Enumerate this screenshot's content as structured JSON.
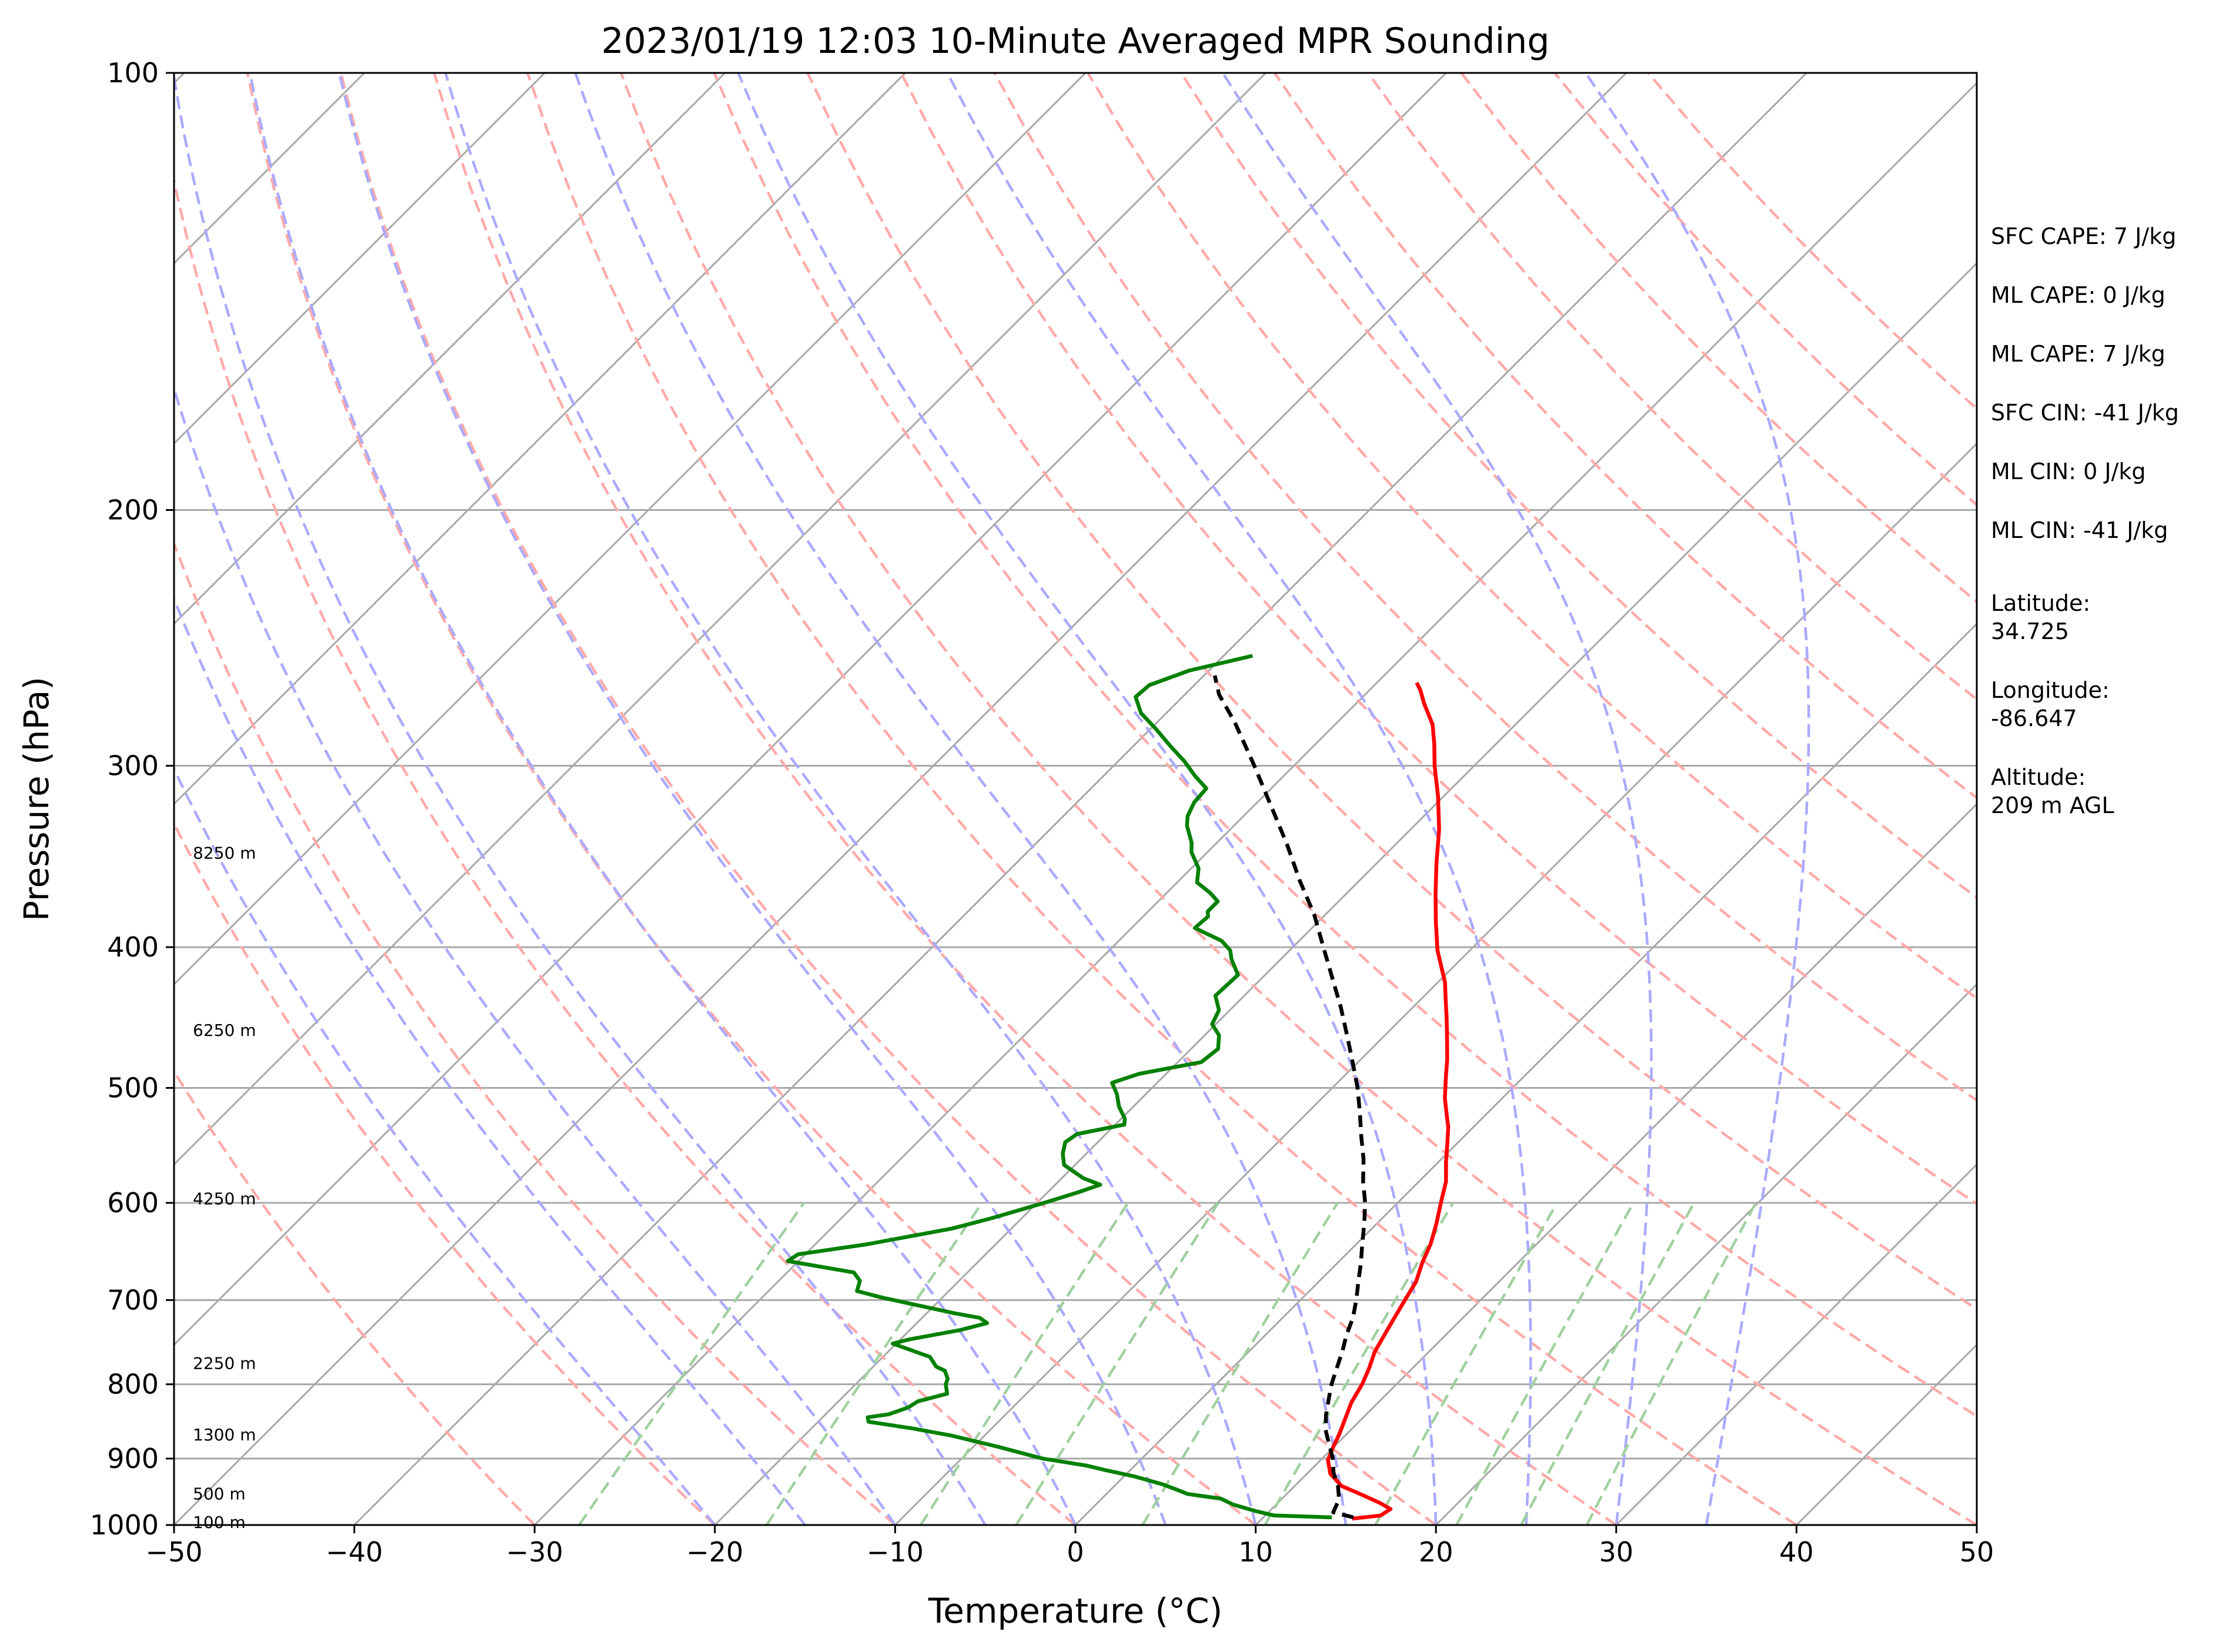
{
  "chart_data": {
    "type": "line",
    "subtype": "skew-t log-p sounding",
    "title": "2023/01/19 12:03 10-Minute Averaged MPR Sounding",
    "xlabel": "Temperature (°C)",
    "ylabel": "Pressure (hPa)",
    "xlim": [
      -50,
      50
    ],
    "ylim": [
      1000,
      100
    ],
    "y_scale": "log",
    "x_ticks": [
      -50,
      -40,
      -30,
      -20,
      -10,
      0,
      10,
      20,
      30,
      40,
      50
    ],
    "x_tick_labels": [
      "−50",
      "−40",
      "−30",
      "−20",
      "−10",
      "0",
      "10",
      "20",
      "30",
      "40",
      "50"
    ],
    "y_ticks": [
      1000,
      900,
      800,
      700,
      600,
      500,
      400,
      300,
      200,
      100
    ],
    "y_tick_labels": [
      "1000",
      "900",
      "800",
      "700",
      "600",
      "500",
      "400",
      "300",
      "200",
      "100"
    ],
    "isobars": [
      200,
      300,
      400,
      500,
      600,
      700,
      800,
      900
    ],
    "isotherms": [
      -150,
      -140,
      -130,
      -120,
      -110,
      -100,
      -90,
      -80,
      -70,
      -60,
      -50,
      -40,
      -30,
      -20,
      -10,
      0,
      10,
      20,
      30,
      40,
      50
    ],
    "dry_adiabats": [
      -30,
      -20,
      -10,
      0,
      10,
      20,
      30,
      40,
      50,
      60,
      70,
      80,
      90,
      100,
      110,
      120,
      130,
      140,
      150,
      160
    ],
    "moist_adiabats": [
      -20,
      -15,
      -10,
      -5,
      0,
      5,
      10,
      15,
      20,
      25,
      30,
      35
    ],
    "mixing_ratio_lines": [
      0.4,
      1,
      2,
      3,
      5,
      8,
      12,
      16,
      20,
      25
    ],
    "height_labels": [
      {
        "text": "100 m",
        "p": 997
      },
      {
        "text": "500 m",
        "p": 953
      },
      {
        "text": "1300 m",
        "p": 868
      },
      {
        "text": "2250 m",
        "p": 775
      },
      {
        "text": "4250 m",
        "p": 597
      },
      {
        "text": "6250 m",
        "p": 457
      },
      {
        "text": "8250 m",
        "p": 345
      }
    ],
    "series": [
      {
        "color": "#ff0000",
        "role": "temperature",
        "points": [
          [
            15,
            990
          ],
          [
            16.4,
            985
          ],
          [
            16.6,
            975
          ],
          [
            15.6,
            965
          ],
          [
            14.2,
            953
          ],
          [
            12.6,
            940
          ],
          [
            11.3,
            922
          ],
          [
            10.4,
            902
          ],
          [
            10,
            885
          ],
          [
            9.6,
            866
          ],
          [
            9.2,
            850
          ],
          [
            8.5,
            823
          ],
          [
            8.1,
            800
          ],
          [
            7.6,
            780
          ],
          [
            7,
            760
          ],
          [
            6.6,
            740
          ],
          [
            6.2,
            720
          ],
          [
            5.8,
            700
          ],
          [
            5.4,
            680
          ],
          [
            4.7,
            660
          ],
          [
            4.1,
            640
          ],
          [
            3.3,
            620
          ],
          [
            2.4,
            600
          ],
          [
            1.5,
            580
          ],
          [
            0.4,
            562
          ],
          [
            -0.6,
            545
          ],
          [
            -1.4,
            532
          ],
          [
            -2.3,
            520
          ],
          [
            -3.2,
            508
          ],
          [
            -4.4,
            490
          ],
          [
            -5.2,
            478
          ],
          [
            -6.4,
            462
          ],
          [
            -7.5,
            448
          ],
          [
            -8.5,
            436
          ],
          [
            -9.6,
            423
          ],
          [
            -11.8,
            402
          ],
          [
            -13.4,
            385
          ],
          [
            -15,
            368
          ],
          [
            -16.7,
            350
          ],
          [
            -18.4,
            332
          ],
          [
            -20.3,
            315
          ],
          [
            -22.2,
            300
          ],
          [
            -23.4,
            290
          ],
          [
            -24.6,
            281
          ],
          [
            -26.2,
            272
          ],
          [
            -27.2,
            266
          ],
          [
            -27.8,
            263
          ]
        ]
      },
      {
        "color": "#008000",
        "role": "dewpoint",
        "points": [
          [
            13.8,
            988
          ],
          [
            10.5,
            985
          ],
          [
            9.2,
            978
          ],
          [
            7.6,
            968
          ],
          [
            6.6,
            959
          ],
          [
            4.5,
            952
          ],
          [
            3.6,
            945
          ],
          [
            2.5,
            937
          ],
          [
            0.6,
            926
          ],
          [
            -1.5,
            916
          ],
          [
            -2.7,
            910
          ],
          [
            -5.5,
            900
          ],
          [
            -8.7,
            883
          ],
          [
            -11.8,
            868
          ],
          [
            -14.4,
            858
          ],
          [
            -17.2,
            849
          ],
          [
            -17.5,
            843
          ],
          [
            -16.5,
            839
          ],
          [
            -15.8,
            830
          ],
          [
            -15.6,
            822
          ],
          [
            -14.4,
            812
          ],
          [
            -15,
            800
          ],
          [
            -15.2,
            793
          ],
          [
            -15.8,
            783
          ],
          [
            -16.5,
            778
          ],
          [
            -17.4,
            766
          ],
          [
            -20.2,
            750
          ],
          [
            -19.5,
            745
          ],
          [
            -17.2,
            734
          ],
          [
            -16.1,
            726
          ],
          [
            -16.8,
            720
          ],
          [
            -18.4,
            715
          ],
          [
            -23.4,
            697
          ],
          [
            -25.1,
            690
          ],
          [
            -25.5,
            679
          ],
          [
            -26.3,
            670
          ],
          [
            -30.6,
            658
          ],
          [
            -30.4,
            651
          ],
          [
            -27.2,
            641
          ],
          [
            -23.3,
            625
          ],
          [
            -21.7,
            615
          ],
          [
            -19.6,
            600
          ],
          [
            -18.3,
            590
          ],
          [
            -17.5,
            583
          ],
          [
            -18.8,
            577
          ],
          [
            -20.6,
            565
          ],
          [
            -21.3,
            555
          ],
          [
            -21.8,
            545
          ],
          [
            -21.6,
            538
          ],
          [
            -19.5,
            530
          ],
          [
            -19.8,
            525
          ],
          [
            -20.8,
            515
          ],
          [
            -21.6,
            505
          ],
          [
            -22.5,
            496
          ],
          [
            -21.5,
            489
          ],
          [
            -18.7,
            480
          ],
          [
            -18.5,
            470
          ],
          [
            -19.2,
            460
          ],
          [
            -20.2,
            452
          ],
          [
            -20.6,
            442
          ],
          [
            -21.6,
            432
          ],
          [
            -21.5,
            418
          ],
          [
            -22.7,
            408
          ],
          [
            -23.3,
            402
          ],
          [
            -24.3,
            396
          ],
          [
            -26.5,
            388
          ],
          [
            -26.4,
            381
          ],
          [
            -26.7,
            378
          ],
          [
            -26.7,
            372
          ],
          [
            -27.6,
            367
          ],
          [
            -28.9,
            361
          ],
          [
            -29.6,
            353
          ],
          [
            -30.9,
            344
          ],
          [
            -31.4,
            339
          ],
          [
            -32.6,
            330
          ],
          [
            -33.1,
            325
          ],
          [
            -33.5,
            318
          ],
          [
            -33.6,
            311
          ],
          [
            -34.9,
            305
          ],
          [
            -36.3,
            298
          ],
          [
            -37.9,
            291
          ],
          [
            -39.7,
            283
          ],
          [
            -41.4,
            276
          ],
          [
            -42.6,
            269
          ],
          [
            -42.5,
            264
          ],
          [
            -41.1,
            258
          ],
          [
            -38.4,
            252
          ]
        ]
      },
      {
        "color": "#000000",
        "dashed": true,
        "role": "parcel",
        "points": [
          [
            15,
            988
          ],
          [
            13.6,
            980
          ],
          [
            13.2,
            960
          ],
          [
            12.4,
            940
          ],
          [
            11.4,
            920
          ],
          [
            10.6,
            900
          ],
          [
            9.6,
            880
          ],
          [
            8.6,
            860
          ],
          [
            7.8,
            840
          ],
          [
            7.1,
            820
          ],
          [
            6.4,
            800
          ],
          [
            5.8,
            780
          ],
          [
            5.2,
            760
          ],
          [
            4.5,
            740
          ],
          [
            3.9,
            720
          ],
          [
            3.1,
            700
          ],
          [
            2.2,
            680
          ],
          [
            1.3,
            660
          ],
          [
            0.3,
            640
          ],
          [
            -0.7,
            620
          ],
          [
            -1.8,
            600
          ],
          [
            -3.1,
            580
          ],
          [
            -4.3,
            560
          ],
          [
            -5.7,
            540
          ],
          [
            -7.1,
            520
          ],
          [
            -8.6,
            500
          ],
          [
            -10.3,
            480
          ],
          [
            -12.1,
            460
          ],
          [
            -14,
            440
          ],
          [
            -16.1,
            420
          ],
          [
            -18.3,
            400
          ],
          [
            -20.6,
            380
          ],
          [
            -23.3,
            360
          ],
          [
            -26,
            340
          ],
          [
            -29,
            320
          ],
          [
            -32.2,
            300
          ],
          [
            -35.7,
            280
          ],
          [
            -38.1,
            268
          ],
          [
            -39.4,
            260
          ]
        ]
      }
    ],
    "annotations": [
      {
        "key": "sfc_cape",
        "text": "SFC CAPE: 7 J/kg"
      },
      {
        "key": "ml_cape_1",
        "text": "ML CAPE: 0 J/kg"
      },
      {
        "key": "ml_cape_2",
        "text": "ML CAPE: 7 J/kg"
      },
      {
        "key": "sfc_cin",
        "text": "SFC CIN: -41 J/kg"
      },
      {
        "key": "ml_cin_1",
        "text": "ML CIN: 0 J/kg"
      },
      {
        "key": "ml_cin_2",
        "text": "ML CIN: -41 J/kg"
      },
      {
        "key": "latitude",
        "lines": [
          "Latitude:",
          "34.725"
        ]
      },
      {
        "key": "longitude",
        "lines": [
          "Longitude:",
          "-86.647"
        ]
      },
      {
        "key": "altitude",
        "lines": [
          "Altitude:",
          "209 m AGL"
        ]
      }
    ],
    "colors": {
      "temperature": "#ff0000",
      "dewpoint": "#008000",
      "parcel": "#000000",
      "dry_adiabats": "#ffaaaa",
      "moist_adiabats": "#aaaaff",
      "mixing_ratio": "#a0d0a0",
      "grid": "#a8a8a8"
    }
  }
}
